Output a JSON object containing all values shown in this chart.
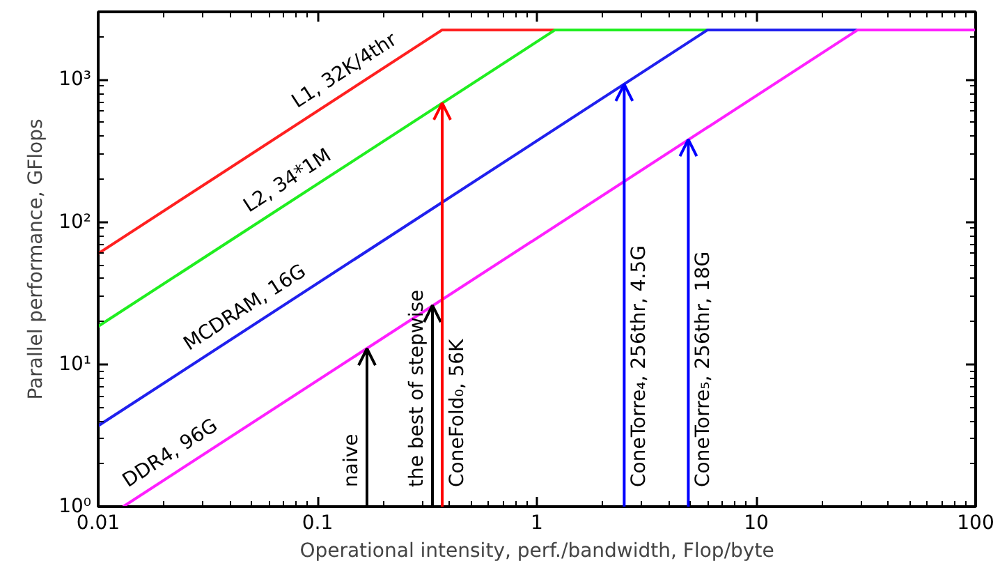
{
  "chart_data": {
    "type": "line",
    "xlabel": "Operational intensity, perf./bandwidth, Flop/byte",
    "ylabel": "Parallel performance, GFlops",
    "log": "xy",
    "grid": false,
    "marker": "none",
    "line_style": "solid",
    "xlim": [
      0.01,
      100
    ],
    "ylim": [
      1,
      3000
    ],
    "xticks": [
      0.01,
      0.1,
      1,
      10,
      100
    ],
    "yticks": [
      {
        "value": 1,
        "label": "10⁰"
      },
      {
        "value": 10,
        "label": "10¹"
      },
      {
        "value": 100,
        "label": "10²"
      },
      {
        "value": 1000,
        "label": "10³"
      }
    ],
    "series": [
      {
        "name": "L1, 32K/4thr",
        "color": "#ff2020",
        "x": [
          0.01,
          0.37,
          1.21
        ],
        "values": [
          60,
          2240,
          2240
        ]
      },
      {
        "name": "L2, 34*1M",
        "color": "#20ee20",
        "x": [
          0.01,
          1.21,
          6.0
        ],
        "values": [
          18.5,
          2240,
          2240
        ]
      },
      {
        "name": "MCDRAM, 16G",
        "color": "#2020ee",
        "x": [
          0.01,
          6.0,
          29
        ],
        "values": [
          3.7,
          2240,
          2240
        ]
      },
      {
        "name": "DDR4, 96G",
        "color": "#ff20ff",
        "x": [
          0.013,
          29,
          100
        ],
        "values": [
          1.0,
          2240,
          2240
        ]
      }
    ],
    "annotations": [
      {
        "text": "naive",
        "x": 0.168,
        "y": 12.9
      },
      {
        "text": "the best of stepwise",
        "x": 0.334,
        "y": 26
      },
      {
        "text": "ConeFold₀, 56K",
        "x": 0.37,
        "y": 685
      },
      {
        "text": "ConeTorre₄, 256thr, 4.5G",
        "x": 2.5,
        "y": 930
      },
      {
        "text": "ConeTorre₅, 256thr, 18G",
        "x": 4.9,
        "y": 380
      }
    ]
  }
}
